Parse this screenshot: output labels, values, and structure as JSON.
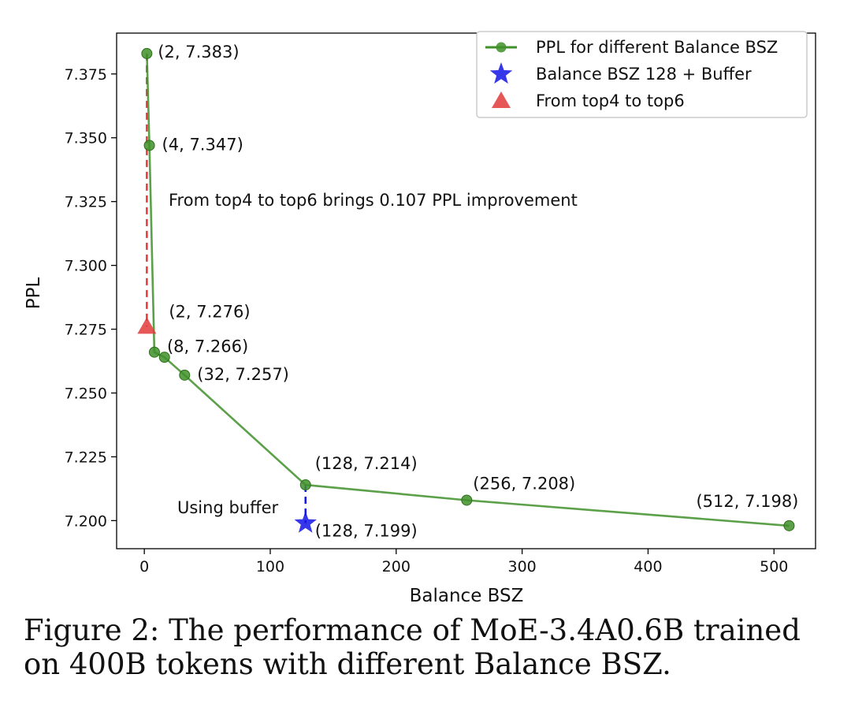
{
  "chart_data": {
    "type": "line",
    "xlabel": "Balance BSZ",
    "ylabel": "PPL",
    "xlim": [
      -22,
      533
    ],
    "ylim": [
      7.189,
      7.391
    ],
    "x_ticks": [
      0,
      100,
      200,
      300,
      400,
      500
    ],
    "y_ticks": [
      7.2,
      7.225,
      7.25,
      7.275,
      7.3,
      7.325,
      7.35,
      7.375
    ],
    "x_tick_labels": [
      "0",
      "100",
      "200",
      "300",
      "400",
      "500"
    ],
    "y_tick_labels": [
      "7.200",
      "7.225",
      "7.250",
      "7.275",
      "7.300",
      "7.325",
      "7.350",
      "7.375"
    ],
    "grid": false,
    "legend_position": "top-right",
    "series": [
      {
        "name": "PPL for different Balance BSZ",
        "color": "#3f8f2a",
        "x": [
          2,
          4,
          8,
          16,
          32,
          128,
          256,
          512
        ],
        "y": [
          7.383,
          7.347,
          7.266,
          7.264,
          7.257,
          7.214,
          7.208,
          7.198
        ],
        "point_labels": [
          "(2, 7.383)",
          "(4, 7.347)",
          "(8, 7.266)",
          "",
          "(32, 7.257)",
          "(128, 7.214)",
          "(256, 7.208)",
          "(512, 7.198)"
        ]
      },
      {
        "name": "Balance BSZ 128 + Buffer",
        "color": "#1414e6",
        "marker": "star",
        "x": [
          128
        ],
        "y": [
          7.199
        ],
        "point_labels": [
          "(128, 7.199)"
        ]
      },
      {
        "name": "From top4 to top6",
        "color": "#e23b3b",
        "marker": "triangle",
        "x": [
          2
        ],
        "y": [
          7.276
        ],
        "point_labels": [
          "(2, 7.276)"
        ]
      }
    ],
    "annotations": [
      {
        "id": "top6",
        "text": "From top4 to top6 brings 0.107 PPL improvement"
      },
      {
        "id": "buffer",
        "text": "Using buffer"
      }
    ]
  },
  "caption": "Figure 2: The performance of MoE-3.4A0.6B trained on 400B tokens with different Balance BSZ."
}
